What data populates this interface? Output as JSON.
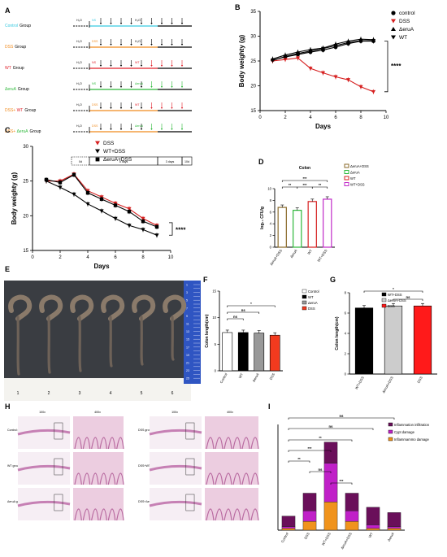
{
  "panel_a": {
    "letter": "A",
    "rows": [
      {
        "group": "Control",
        "suffix": "Group",
        "color": "#39c9e0",
        "first": "H₂O",
        "second": "NS",
        "third": "H₂O",
        "pre": "",
        "treat": "",
        "treat_color": ""
      },
      {
        "group": "DSS",
        "suffix": "Group",
        "color": "#f08a1c",
        "first": "H₂O",
        "second": "DSS",
        "third": "H₂O",
        "pre": "",
        "treat": "",
        "treat_color": ""
      },
      {
        "group": "WT",
        "suffix": "Group",
        "color": "#e0202a",
        "first": "H₂O",
        "second": "NS",
        "third": "",
        "pre": "",
        "treat": "WT",
        "treat_color": "#e0202a"
      },
      {
        "group": "ΔeruA",
        "suffix": "Group",
        "color": "#2db83a",
        "first": "H₂O",
        "second": "NS",
        "third": "",
        "pre": "",
        "treat": "ΔeruA",
        "treat_color": "#2db83a"
      },
      {
        "group": "DSS+",
        "group2": "WT",
        "suffix": "Group",
        "color": "#f08a1c",
        "color2": "#e0202a",
        "first": "H₂O",
        "second": "DSS",
        "third": "",
        "pre": "",
        "treat": "WT",
        "treat_color": "#e0202a"
      },
      {
        "group": "DSS+",
        "group2": "ΔeruA",
        "suffix": "Group",
        "color": "#f08a1c",
        "color2": "#2db83a",
        "first": "H₂O",
        "second": "DSS",
        "third": "",
        "pre": "",
        "treat": "ΔeruA",
        "treat_color": "#2db83a"
      }
    ],
    "timeline": [
      "0d",
      "5 days",
      "3 days",
      "10d"
    ]
  },
  "chart_data": [
    {
      "panel": "B",
      "type": "line",
      "xlabel": "Days",
      "ylabel": "Body weighty (g)",
      "xlim": [
        0,
        10
      ],
      "ylim": [
        15,
        35
      ],
      "xticks": [
        0,
        2,
        4,
        6,
        8,
        10
      ],
      "yticks": [
        15,
        20,
        25,
        30,
        35
      ],
      "x": [
        1,
        2,
        3,
        4,
        5,
        6,
        7,
        8,
        9
      ],
      "series": [
        {
          "name": "control",
          "color": "#000000",
          "marker": "circle",
          "values": [
            25.2,
            25.8,
            26.3,
            26.8,
            27.2,
            27.8,
            28.5,
            29.0,
            29.0
          ]
        },
        {
          "name": "DSS",
          "color": "#d62020",
          "marker": "triangle-down",
          "values": [
            25.0,
            25.3,
            25.6,
            23.5,
            22.6,
            21.8,
            21.2,
            19.8,
            18.8
          ]
        },
        {
          "name": "ΔeruA",
          "color": "#000000",
          "marker": "triangle-up",
          "values": [
            25.4,
            26.2,
            26.8,
            27.3,
            27.6,
            28.4,
            29.0,
            29.4,
            29.3
          ]
        },
        {
          "name": "WT",
          "color": "#000000",
          "marker": "triangle-down",
          "values": [
            25.1,
            25.9,
            26.5,
            27.0,
            27.5,
            28.1,
            28.7,
            29.1,
            29.1
          ]
        }
      ],
      "annotation": "****"
    },
    {
      "panel": "C",
      "type": "line",
      "xlabel": "Days",
      "ylabel": "Body weighty (g)",
      "xlim": [
        0,
        10
      ],
      "ylim": [
        15,
        30
      ],
      "xticks": [
        0,
        2,
        4,
        6,
        8,
        10
      ],
      "yticks": [
        15,
        20,
        25,
        30
      ],
      "x": [
        1,
        2,
        3,
        4,
        5,
        6,
        7,
        8,
        9
      ],
      "series": [
        {
          "name": "DSS",
          "color": "#d62020",
          "marker": "triangle-down",
          "values": [
            25.0,
            25.0,
            26.0,
            23.6,
            22.7,
            21.8,
            21.0,
            19.6,
            18.6
          ]
        },
        {
          "name": "WT+DSS",
          "color": "#000000",
          "marker": "triangle-down",
          "values": [
            25.0,
            24.1,
            23.1,
            21.7,
            20.7,
            19.6,
            18.6,
            18.0,
            17.2
          ]
        },
        {
          "name": "ΔeruA+DSS",
          "color": "#000000",
          "marker": "square",
          "values": [
            25.2,
            24.8,
            25.9,
            23.3,
            22.4,
            21.5,
            20.6,
            19.2,
            18.4
          ]
        }
      ],
      "annotation": "****"
    },
    {
      "panel": "D",
      "type": "bar",
      "title": "Colon",
      "ylabel": "log₁₀ CFU/g",
      "ylim": [
        0,
        10
      ],
      "yticks": [
        0,
        2,
        4,
        6,
        8,
        10
      ],
      "categories": [
        "ΔeruA+DSS",
        "ΔeruA",
        "WT",
        "WT+DSS"
      ],
      "values": [
        6.8,
        6.3,
        7.8,
        8.2
      ],
      "colors": [
        "#8a6a2a",
        "#2db83a",
        "#d62020",
        "#c02ac8"
      ],
      "legend": [
        "ΔeruA+DSS",
        "ΔeruA",
        "WT",
        "WT+DSS"
      ],
      "significance": [
        {
          "pair": [
            0,
            3
          ],
          "label": "***"
        },
        {
          "pair": [
            0,
            1
          ],
          "label": "**"
        },
        {
          "pair": [
            1,
            2
          ],
          "label": "***"
        },
        {
          "pair": [
            2,
            3
          ],
          "label": "**"
        }
      ]
    },
    {
      "panel": "F",
      "type": "bar",
      "ylabel": "Colon length(cm)",
      "ylim": [
        0,
        15
      ],
      "yticks": [
        0,
        5,
        10,
        15
      ],
      "categories": [
        "Control",
        "WT",
        "ΔeruA",
        "DSS"
      ],
      "values": [
        7.2,
        7.2,
        7.1,
        6.7
      ],
      "colors": [
        "#ffffff",
        "#000000",
        "#999999",
        "#f23a1e"
      ],
      "legend": [
        "Control",
        "WT",
        "ΔeruA",
        "DSS"
      ],
      "significance": [
        {
          "pair": [
            0,
            3
          ],
          "label": "*"
        },
        {
          "pair": [
            0,
            2
          ],
          "label": "ns"
        },
        {
          "pair": [
            0,
            1
          ],
          "label": "ns"
        }
      ]
    },
    {
      "panel": "G",
      "type": "bar",
      "ylabel": "Colon length(cm)",
      "ylim": [
        0,
        8
      ],
      "yticks": [
        0,
        2,
        4,
        6,
        8
      ],
      "categories": [
        "WT+DSS",
        "ΔeruA+DSS",
        "DSS"
      ],
      "values": [
        6.5,
        6.7,
        6.7
      ],
      "colors": [
        "#000000",
        "#cccccc",
        "#ff1a1a"
      ],
      "legend": [
        "WT+DSS",
        "ΔeruA+DSS",
        "DSS"
      ],
      "significance": [
        {
          "pair": [
            0,
            2
          ],
          "label": "*"
        },
        {
          "pair": [
            1,
            2
          ],
          "label": "ns"
        }
      ]
    },
    {
      "panel": "I",
      "type": "bar",
      "stacked": true,
      "ylim": [
        0,
        30
      ],
      "categories": [
        "Control",
        "DSS",
        "WT+DSS",
        "ΔeruA+DSS",
        "WT",
        "ΔeruA"
      ],
      "series": [
        {
          "name": "Inflammammo damage",
          "color": "#f0931c",
          "values": [
            0.5,
            2.5,
            8,
            2.5,
            0.5,
            0.5
          ]
        },
        {
          "name": "Cypt damage",
          "color": "#c020c8",
          "values": [
            0.5,
            3,
            11,
            3,
            1,
            0.5
          ]
        },
        {
          "name": "Inflammation infiltration",
          "color": "#6a0f5a",
          "values": [
            3,
            5,
            6,
            5,
            5,
            4
          ]
        }
      ],
      "significance": [
        {
          "pair": [
            0,
            5
          ],
          "label": "ns"
        },
        {
          "pair": [
            0,
            4
          ],
          "label": "ns"
        },
        {
          "pair": [
            0,
            3
          ],
          "label": "**"
        },
        {
          "pair": [
            0,
            2
          ],
          "label": "***"
        },
        {
          "pair": [
            0,
            1
          ],
          "label": "**"
        },
        {
          "pair": [
            1,
            2
          ],
          "label": "ns"
        },
        {
          "pair": [
            2,
            3
          ],
          "label": "***"
        }
      ]
    }
  ],
  "panel_e": {
    "letter": "E",
    "specimens": [
      "1",
      "2",
      "3",
      "4",
      "5",
      "6"
    ],
    "ruler_marks": [
      "1",
      "2",
      "3",
      "4",
      "5",
      "6",
      "7",
      "8",
      "9",
      "10",
      "11",
      "12",
      "13",
      "14",
      "15",
      "16",
      "17",
      "18",
      "19",
      "20",
      "21",
      "22",
      "23",
      "24",
      "25"
    ]
  },
  "panel_h": {
    "letter": "H",
    "mag_low": "100x",
    "mag_high": "400x",
    "left_groups": [
      "Control group",
      "WT group",
      "ΔeruA group"
    ],
    "right_groups": [
      "DSS group",
      "DSS+WT group",
      "DSS+ΔeruA group"
    ]
  },
  "letters": {
    "b": "B",
    "c": "C",
    "d": "D",
    "f": "F",
    "g": "G",
    "i": "I"
  }
}
